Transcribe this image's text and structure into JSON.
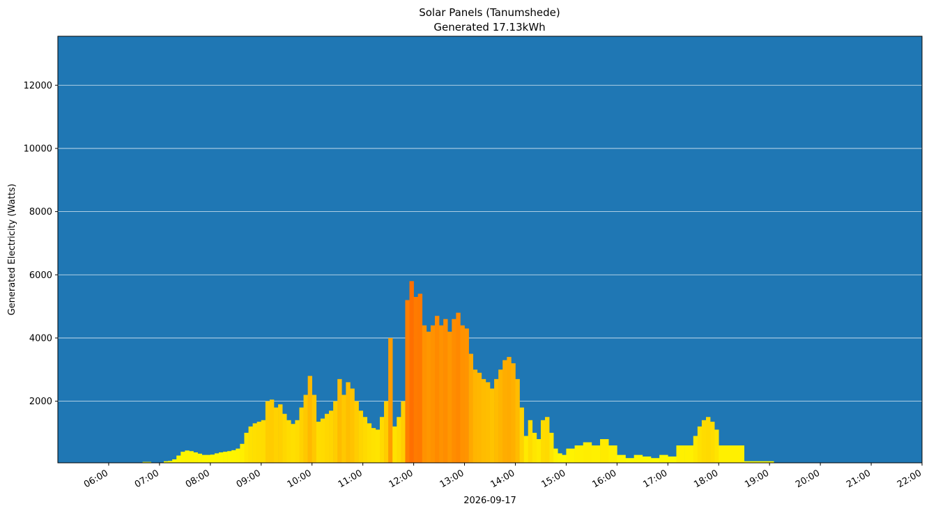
{
  "chart_data": {
    "type": "bar",
    "title": "Solar Panels (Tanumshede)",
    "subtitle": "Generated 17.13kWh",
    "xlabel": "2026-09-17",
    "ylabel": "Generated Electricity (Watts)",
    "x_ticks": [
      "06:00",
      "07:00",
      "08:00",
      "09:00",
      "10:00",
      "11:00",
      "12:00",
      "13:00",
      "14:00",
      "15:00",
      "16:00",
      "17:00",
      "18:00",
      "19:00",
      "20:00",
      "21:00",
      "22:00"
    ],
    "y_ticks": [
      2000,
      4000,
      6000,
      8000,
      10000,
      12000
    ],
    "xlim": [
      "05:00",
      "22:00"
    ],
    "ylim": [
      50,
      13550
    ],
    "grid": "horizontal",
    "background_color": "#1f77b4",
    "colormap": {
      "low": "#ffff00",
      "high": "#ff6a00",
      "max_value": 6000
    },
    "times": [
      "06:40",
      "06:50",
      "07:05",
      "07:10",
      "07:15",
      "07:20",
      "07:25",
      "07:30",
      "07:35",
      "07:40",
      "07:45",
      "07:50",
      "07:55",
      "08:00",
      "08:05",
      "08:10",
      "08:15",
      "08:20",
      "08:25",
      "08:30",
      "08:35",
      "08:40",
      "08:45",
      "08:50",
      "08:55",
      "09:00",
      "09:05",
      "09:10",
      "09:15",
      "09:20",
      "09:25",
      "09:30",
      "09:35",
      "09:40",
      "09:45",
      "09:50",
      "09:55",
      "10:00",
      "10:05",
      "10:10",
      "10:15",
      "10:20",
      "10:25",
      "10:30",
      "10:35",
      "10:40",
      "10:45",
      "10:50",
      "10:55",
      "11:00",
      "11:05",
      "11:10",
      "11:15",
      "11:20",
      "11:25",
      "11:30",
      "11:35",
      "11:40",
      "11:45",
      "11:50",
      "11:55",
      "12:00",
      "12:05",
      "12:10",
      "12:15",
      "12:20",
      "12:25",
      "12:30",
      "12:35",
      "12:40",
      "12:45",
      "12:50",
      "12:55",
      "13:00",
      "13:05",
      "13:10",
      "13:15",
      "13:20",
      "13:25",
      "13:30",
      "13:35",
      "13:40",
      "13:45",
      "13:50",
      "13:55",
      "14:00",
      "14:05",
      "14:10",
      "14:15",
      "14:20",
      "14:25",
      "14:30",
      "14:35",
      "14:40",
      "14:45",
      "14:50",
      "14:55",
      "15:00",
      "15:10",
      "15:20",
      "15:30",
      "15:40",
      "15:50",
      "16:00",
      "16:10",
      "16:20",
      "16:30",
      "16:40",
      "16:50",
      "17:00",
      "17:10",
      "17:20",
      "17:30",
      "17:35",
      "17:40",
      "17:45",
      "17:50",
      "17:55",
      "18:00",
      "18:30",
      "19:00"
    ],
    "values": [
      80,
      20,
      100,
      110,
      160,
      280,
      400,
      440,
      420,
      380,
      340,
      300,
      300,
      310,
      350,
      380,
      400,
      420,
      450,
      500,
      650,
      1000,
      1200,
      1300,
      1350,
      1400,
      2000,
      2050,
      1800,
      1900,
      1600,
      1400,
      1280,
      1400,
      1800,
      2200,
      2800,
      2200,
      1350,
      1450,
      1600,
      1700,
      2000,
      2700,
      2200,
      2600,
      2400,
      2000,
      1700,
      1500,
      1300,
      1150,
      1100,
      1500,
      2000,
      4000,
      1200,
      1500,
      2000,
      5200,
      5800,
      5300,
      5400,
      4400,
      4200,
      4400,
      4700,
      4400,
      4600,
      4200,
      4600,
      4800,
      4400,
      4300,
      3500,
      3000,
      2900,
      2700,
      2600,
      2400,
      2700,
      3000,
      3300,
      3400,
      3200,
      2700,
      1800,
      900,
      1400,
      1000,
      800,
      1400,
      1500,
      1000,
      500,
      350,
      300,
      500,
      600,
      700,
      600,
      800,
      600,
      300,
      200,
      300,
      250,
      200,
      300,
      250,
      600,
      600,
      900,
      1200,
      1400,
      1500,
      1350,
      1100,
      600,
      100,
      100
    ]
  }
}
